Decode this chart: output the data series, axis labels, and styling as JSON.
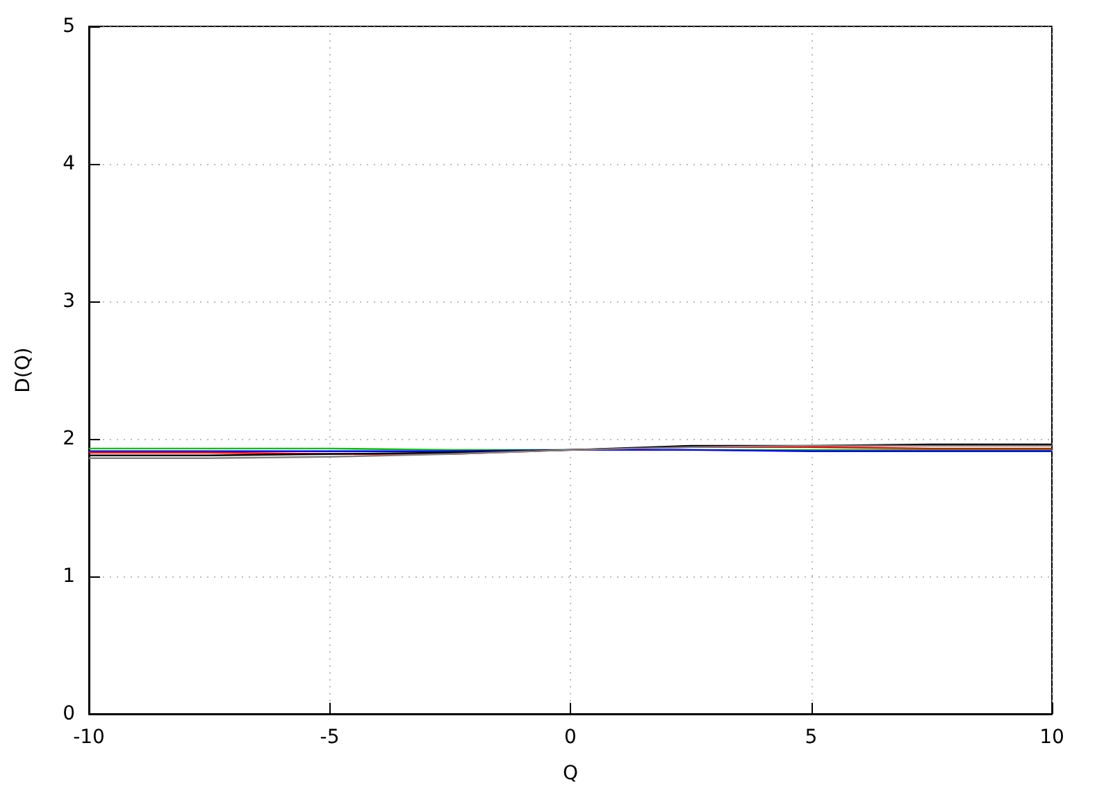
{
  "chart_data": {
    "type": "line",
    "xlabel": "Q",
    "ylabel": "D(Q)",
    "x": [
      -10,
      -7.5,
      -5,
      -2.5,
      0,
      2.5,
      5,
      7.5,
      10
    ],
    "series": [
      {
        "color": "#00c000",
        "values": [
          1.93,
          1.93,
          1.93,
          1.92,
          1.92,
          1.92,
          1.92,
          1.92,
          1.92
        ]
      },
      {
        "color": "#0000ff",
        "values": [
          1.91,
          1.91,
          1.91,
          1.91,
          1.92,
          1.92,
          1.91,
          1.91,
          1.91
        ]
      },
      {
        "color": "#ff0000",
        "values": [
          1.9,
          1.9,
          1.89,
          1.89,
          1.92,
          1.94,
          1.94,
          1.93,
          1.93
        ]
      },
      {
        "color": "#000000",
        "values": [
          1.88,
          1.88,
          1.89,
          1.9,
          1.92,
          1.95,
          1.95,
          1.96,
          1.96
        ]
      },
      {
        "color": "#808080",
        "values": [
          1.86,
          1.86,
          1.87,
          1.89,
          1.92,
          1.94,
          1.95,
          1.95,
          1.95
        ]
      }
    ],
    "xlim": [
      -10,
      10
    ],
    "xticks": [
      -10,
      -5,
      0,
      5,
      10
    ],
    "ylim": [
      0,
      5
    ],
    "yticks": [
      0,
      1,
      2,
      3,
      4,
      5
    ],
    "grid": true,
    "marker": "none",
    "line_style": "solid"
  }
}
